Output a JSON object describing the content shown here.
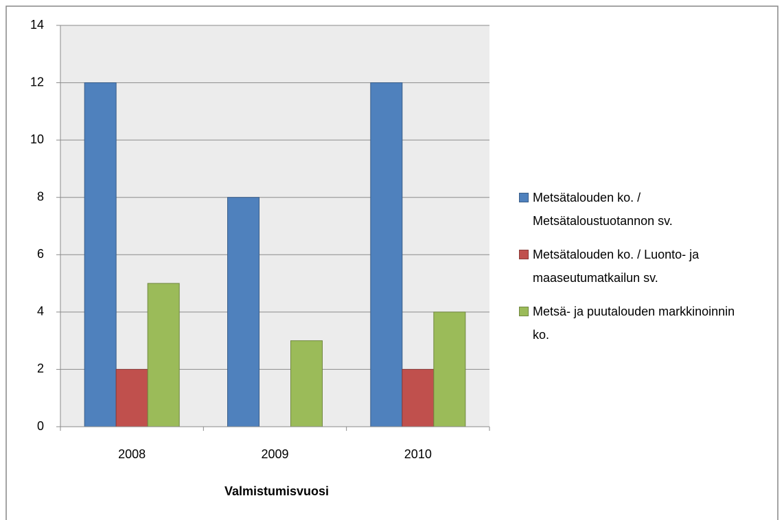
{
  "chart_data": {
    "type": "bar",
    "x_label": "Valmistumisvuosi",
    "categories": [
      "2008",
      "2009",
      "2010"
    ],
    "series": [
      {
        "name": "Metsätalouden ko. / Metsätaloustuotannon sv.",
        "color": "#4f81bd",
        "values": [
          12,
          8,
          12
        ]
      },
      {
        "name": "Metsätalouden ko. / Luonto- ja maaseutumatkailun sv.",
        "color": "#c0504d",
        "values": [
          2,
          0,
          2
        ]
      },
      {
        "name": "Metsä- ja puutalouden markkinoinnin ko.",
        "color": "#9bbb59",
        "values": [
          5,
          3,
          4
        ]
      }
    ],
    "ylim": [
      0,
      14
    ],
    "yticks": [
      0,
      2,
      4,
      6,
      8,
      10,
      12,
      14
    ],
    "grid": true,
    "legend": "right"
  }
}
